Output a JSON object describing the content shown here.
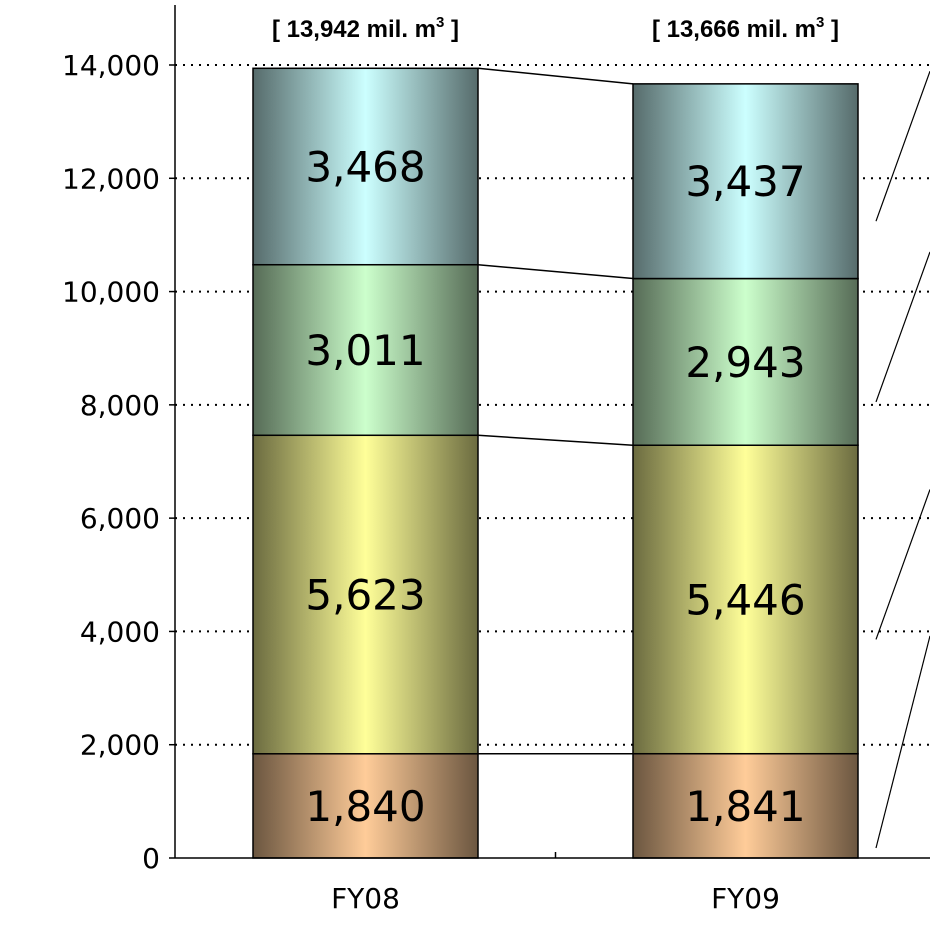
{
  "chart_data": {
    "type": "bar",
    "stacked": true,
    "categories": [
      "FY08",
      "FY09"
    ],
    "series": [
      {
        "values": [
          1840,
          1841
        ],
        "color": "#ffcc99"
      },
      {
        "values": [
          5623,
          5446
        ],
        "color": "#ffff99"
      },
      {
        "values": [
          3011,
          2943
        ],
        "color": "#ccffcc"
      },
      {
        "values": [
          3468,
          3437
        ],
        "color": "#ccffff"
      }
    ],
    "value_labels": [
      [
        "1,840",
        "1,841"
      ],
      [
        "5,623",
        "5,446"
      ],
      [
        "3,011",
        "2,943"
      ],
      [
        "3,468",
        "3,437"
      ]
    ],
    "totals": [
      {
        "prefix": "[ 13,942 mil. m",
        "sup": "3",
        "suffix": " ]"
      },
      {
        "prefix": "[ 13,666 mil. m",
        "sup": "3",
        "suffix": " ]"
      }
    ],
    "ylim": [
      0,
      14000
    ],
    "yticks": [
      0,
      2000,
      4000,
      6000,
      8000,
      10000,
      12000,
      14000
    ],
    "ytick_labels": [
      "0",
      "2,000",
      "4,000",
      "6,000",
      "8,000",
      "10,000",
      "12,000",
      "14,000"
    ],
    "grid": true,
    "connector_lines": true
  }
}
